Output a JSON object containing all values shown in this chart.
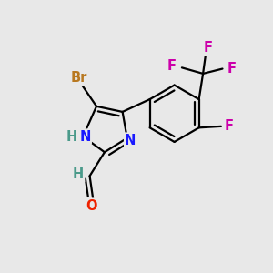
{
  "bg_color": "#e8e8e8",
  "bond_color": "#000000",
  "bond_width": 1.6,
  "atom_labels": {
    "Br": {
      "color": "#b87820",
      "fontsize": 10.5
    },
    "N": {
      "color": "#1a1aff",
      "fontsize": 10.5
    },
    "H": {
      "color": "#4a9a8a",
      "fontsize": 10.5
    },
    "O": {
      "color": "#ee2200",
      "fontsize": 10.5
    },
    "F": {
      "color": "#cc00aa",
      "fontsize": 10.5
    },
    "C_CHO": {
      "color": "#4a9a8a",
      "fontsize": 10.5
    }
  },
  "figsize": [
    3.0,
    3.0
  ],
  "dpi": 100
}
